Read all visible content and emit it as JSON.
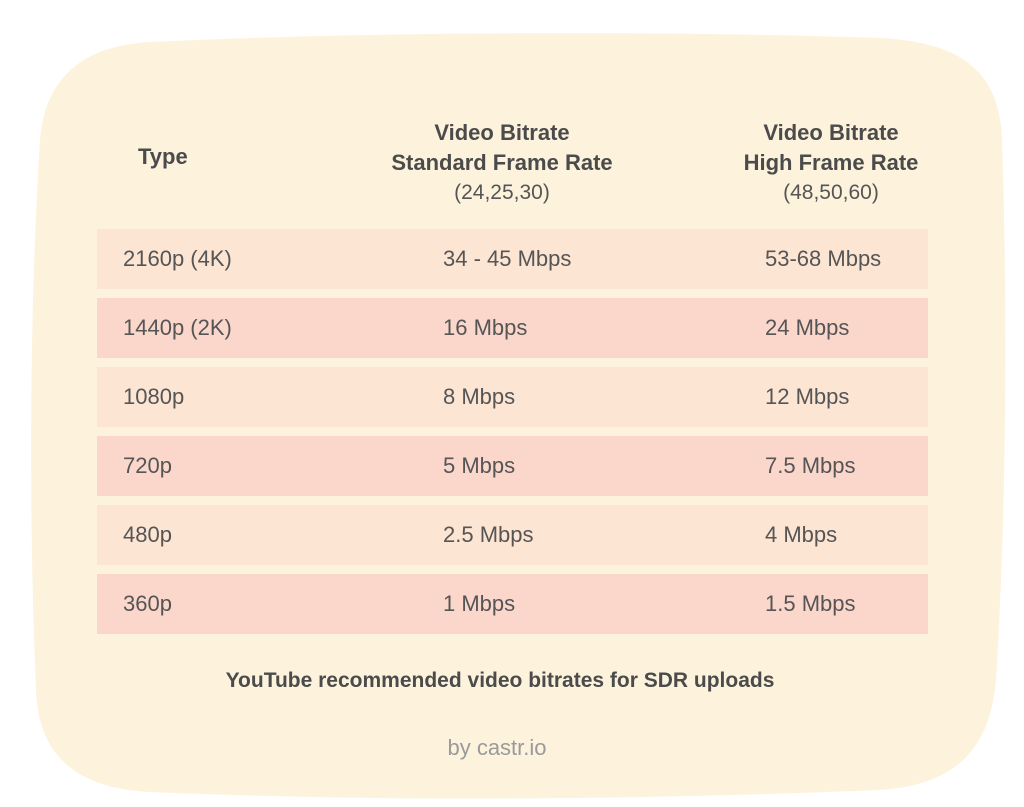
{
  "colors": {
    "background_blob": "#fdf3dd",
    "row_light": "#fde5d4",
    "row_dark": "#fbd7cb",
    "text": "#555555",
    "credit_text": "#9a9a9a"
  },
  "table": {
    "headers": {
      "type": "Type",
      "standard_title": "Video Bitrate",
      "standard_subtitle": "Standard Frame Rate",
      "standard_rates": "(24,25,30)",
      "high_title": "Video Bitrate",
      "high_subtitle": "High Frame Rate",
      "high_rates": "(48,50,60)"
    },
    "rows": [
      {
        "type": "2160p (4K)",
        "standard": "34 - 45 Mbps",
        "high": "53-68 Mbps"
      },
      {
        "type": "1440p (2K)",
        "standard": "16 Mbps",
        "high": "24 Mbps"
      },
      {
        "type": "1080p",
        "standard": "8 Mbps",
        "high": "12 Mbps"
      },
      {
        "type": "720p",
        "standard": "5 Mbps",
        "high": "7.5 Mbps"
      },
      {
        "type": "480p",
        "standard": "2.5 Mbps",
        "high": "4 Mbps"
      },
      {
        "type": "360p",
        "standard": "1 Mbps",
        "high": "1.5 Mbps"
      }
    ]
  },
  "caption": "YouTube recommended video bitrates for SDR uploads",
  "credit": "by castr.io"
}
